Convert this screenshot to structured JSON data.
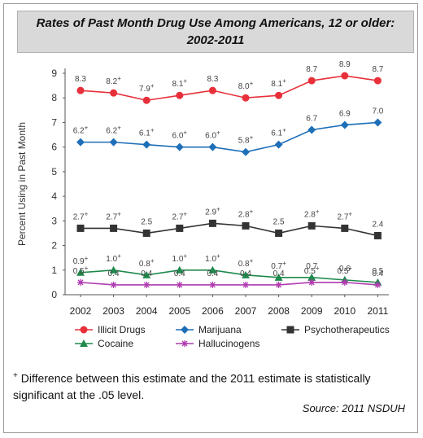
{
  "header": {
    "title": "Rates of Past Month Drug Use Among Americans, 12 or older: 2002-2011"
  },
  "chart_data": {
    "type": "line",
    "title": "Rates of Past Month Drug Use Among Americans, 12 or older: 2002-2011",
    "ylabel": "Percent Using in Past Month",
    "xlabel": "",
    "ylim": [
      0,
      9
    ],
    "yticks": [
      "0",
      "1",
      "2",
      "3",
      "4",
      "5",
      "6",
      "7",
      "8",
      "9"
    ],
    "categories": [
      "2002",
      "2003",
      "2004",
      "2005",
      "2006",
      "2007",
      "2008",
      "2009",
      "2010",
      "2011"
    ],
    "grid": false,
    "legend_position": "bottom",
    "series": [
      {
        "name": "Illicit Drugs",
        "color": "#e8303a",
        "marker": "circle",
        "values": [
          8.3,
          8.2,
          7.9,
          8.1,
          8.3,
          8.0,
          8.1,
          8.7,
          8.9,
          8.7
        ],
        "labels": [
          "8.3",
          "8.2+",
          "7.9+",
          "8.1+",
          "8.3",
          "8.0+",
          "8.1+",
          "8.7",
          "8.9",
          "8.7"
        ]
      },
      {
        "name": "Marijuana",
        "color": "#1e6fb8",
        "marker": "diamond",
        "values": [
          6.2,
          6.2,
          6.1,
          6.0,
          6.0,
          5.8,
          6.1,
          6.7,
          6.9,
          7.0
        ],
        "labels": [
          "6.2+",
          "6.2+",
          "6.1+",
          "6.0+",
          "6.0+",
          "5.8+",
          "6.1+",
          "6.7",
          "6.9",
          "7.0"
        ]
      },
      {
        "name": "Psychotherapeutics",
        "color": "#333333",
        "marker": "square",
        "values": [
          2.7,
          2.7,
          2.5,
          2.7,
          2.9,
          2.8,
          2.5,
          2.8,
          2.7,
          2.4
        ],
        "labels": [
          "2.7+",
          "2.7+",
          "2.5",
          "2.7+",
          "2.9+",
          "2.8+",
          "2.5",
          "2.8+",
          "2.7+",
          "2.4"
        ]
      },
      {
        "name": "Cocaine",
        "color": "#1e8a4c",
        "marker": "triangle",
        "values": [
          0.9,
          1.0,
          0.8,
          1.0,
          1.0,
          0.8,
          0.7,
          0.7,
          0.6,
          0.5
        ],
        "labels": [
          "0.9+",
          "1.0+",
          "0.8+",
          "1.0+",
          "1.0+",
          "0.8+",
          "0.7+",
          "0.7",
          "0.6",
          "0.5"
        ]
      },
      {
        "name": "Hallucinogens",
        "color": "#b03ab0",
        "marker": "asterisk",
        "values": [
          0.5,
          0.4,
          0.4,
          0.4,
          0.4,
          0.4,
          0.4,
          0.5,
          0.5,
          0.4
        ],
        "labels": [
          "0.5+",
          "0.4",
          "0.4",
          "0.4",
          "0.4",
          "0.4",
          "0.4",
          "0.5+",
          "0.5+",
          "0.4"
        ]
      }
    ]
  },
  "footnote": {
    "symbol": "+",
    "text": " Difference between this estimate and the 2011 estimate is statistically significant at the .05 level."
  },
  "source": "Source:  2011 NSDUH"
}
